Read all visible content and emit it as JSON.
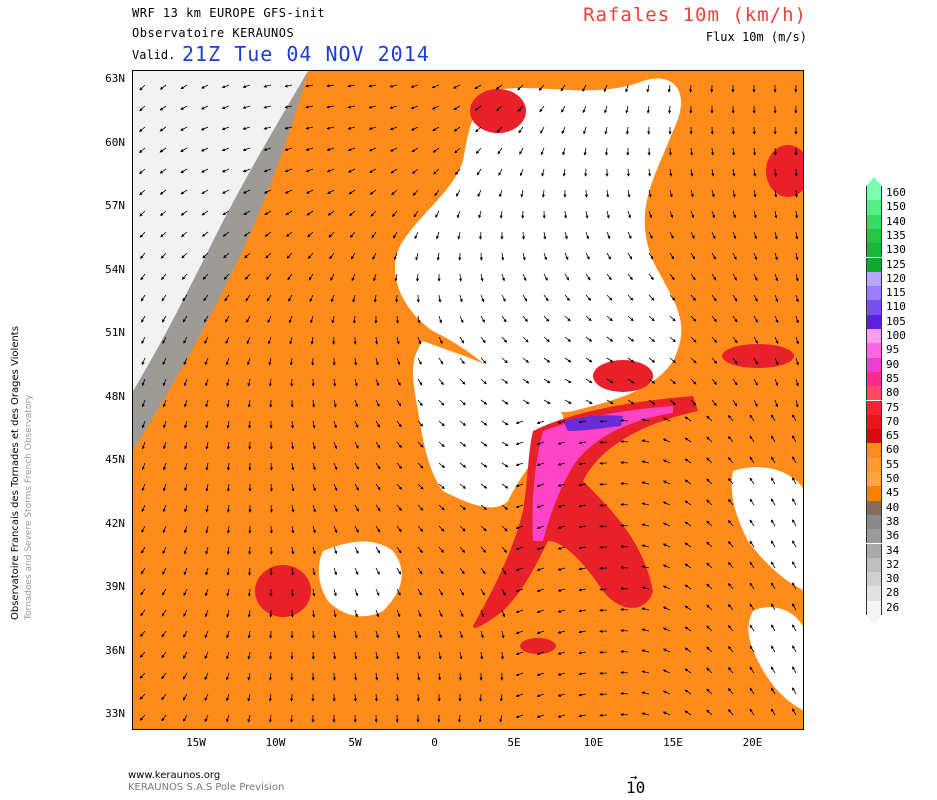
{
  "header": {
    "model_line": "WRF 13 km EUROPE  GFS-init",
    "source_line": "Observatoire KERAUNOS",
    "valid_label": "Valid.",
    "valid_date": "21Z Tue 04 NOV 2014",
    "title": "Rafales 10m (km/h)",
    "subtitle": "Flux 10m (m/s)"
  },
  "side_text": {
    "line1": "Observatoire Francais des Tornades et des Orages Violents",
    "line2": "Tornadoes and Severe Storms French Observatory"
  },
  "map": {
    "lat_labels": [
      "63N",
      "60N",
      "57N",
      "54N",
      "51N",
      "48N",
      "45N",
      "42N",
      "39N",
      "36N",
      "33N"
    ],
    "lon_labels": [
      "15W",
      "10W",
      "5W",
      "0",
      "5E",
      "10E",
      "15E",
      "20E"
    ],
    "colors": {
      "ocean_gust": "#ff8c1a",
      "gray_low": "#a0a0a0",
      "red_high": "#e8202a",
      "magenta": "#ff44c8",
      "violet": "#6b2bd6",
      "land": "#ffffff"
    }
  },
  "legend": {
    "values": [
      "160",
      "150",
      "140",
      "135",
      "130",
      "125",
      "120",
      "115",
      "110",
      "105",
      "100",
      "95",
      "90",
      "85",
      "80",
      "75",
      "70",
      "65",
      "60",
      "55",
      "50",
      "45",
      "40",
      "38",
      "36",
      "34",
      "32",
      "30",
      "28",
      "26"
    ],
    "colors": [
      "#7bffb0",
      "#55ee88",
      "#33dd66",
      "#22c844",
      "#18b83a",
      "#10a830",
      "#b9a8ff",
      "#9a7cff",
      "#7a4ff0",
      "#5a20e0",
      "#ff9cf0",
      "#ff66e0",
      "#f03cd0",
      "#ff2a8a",
      "#ff4860",
      "#ff2030",
      "#e8141e",
      "#d80810",
      "#ff8c1a",
      "#ff9a2c",
      "#ffa640",
      "#ff8000",
      "#8a6a58",
      "#8a8a8a",
      "#9a9a9a",
      "#aaaaaa",
      "#c0c0c0",
      "#d0d0d0",
      "#e2e2e2",
      "#f4f4f4"
    ]
  },
  "footer": {
    "site": "www.keraunos.org",
    "company": "KERAUNOS S.A.S Pole Prevision",
    "ref_arrow": "→",
    "ref_value": "10"
  }
}
